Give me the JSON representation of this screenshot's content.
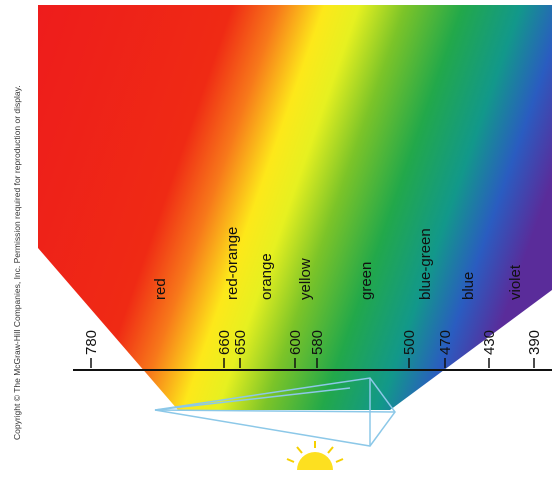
{
  "copyright": "Copyright © The McGraw-Hill Companies, Inc. Permission required for reproduction or display.",
  "colors": [
    "red",
    "red-orange",
    "orange",
    "yellow",
    "green",
    "blue-green",
    "blue",
    "violet"
  ],
  "wavelengths": [
    780,
    660,
    650,
    600,
    580,
    500,
    470,
    430,
    390
  ]
}
